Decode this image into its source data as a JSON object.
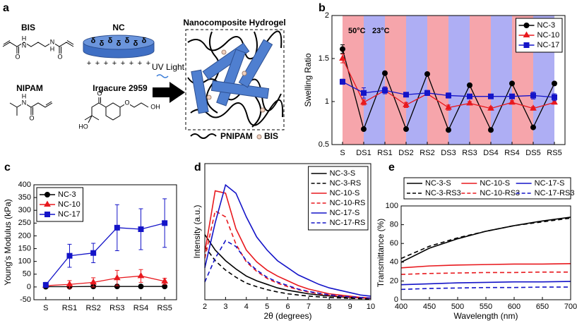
{
  "diagram": {
    "panel_label": "a",
    "labels": {
      "bis": "BIS",
      "nc": "NC",
      "nipam": "NIPAM",
      "irgacure": "Irgacure 2959",
      "uv": "UV Light",
      "hydrogel": "Nanocomposite Hydrogel",
      "pnipam": "PNIPAM",
      "bis_legend": "BIS"
    },
    "atoms": {
      "n": "N",
      "h": "H",
      "o": "O",
      "oh": "OH",
      "ho": "HO"
    },
    "disk_charge": "δ",
    "edge_charge": "+"
  },
  "chart_data": [
    {
      "type": "line",
      "panel_label": "b",
      "ylabel": "Swelling Ratio",
      "categories": [
        "S",
        "DS1",
        "RS1",
        "DS2",
        "RS2",
        "DS3",
        "RS3",
        "DS4",
        "RS4",
        "DS5",
        "RS5"
      ],
      "ylim": [
        0.5,
        2
      ],
      "yticks": [
        0.5,
        1,
        1.5,
        2
      ],
      "band_colors": [
        "#f6a5ab",
        "#aeaef4"
      ],
      "annotations": [
        "50°C",
        "23°C"
      ],
      "legend": "upper right",
      "series": [
        {
          "name": "NC-3",
          "color": "#000000",
          "marker": "circle",
          "values": [
            1.61,
            0.68,
            1.33,
            0.68,
            1.32,
            0.67,
            1.19,
            0.67,
            1.21,
            0.7,
            1.21
          ],
          "errors": [
            0.05,
            0.01,
            0.01,
            0.01,
            0.01,
            0.01,
            0.02,
            0.01,
            0.01,
            0.01,
            0.01
          ]
        },
        {
          "name": "NC-10",
          "color": "#e8191e",
          "marker": "triangle",
          "values": [
            1.5,
            0.99,
            1.13,
            0.96,
            1.09,
            0.93,
            0.98,
            0.92,
            0.99,
            0.92,
            0.99
          ],
          "errors": [
            0.05,
            0.03,
            0.04,
            0.03,
            0.02,
            0.03,
            0.02,
            0.02,
            0.02,
            0.02,
            0.02
          ]
        },
        {
          "name": "NC-17",
          "color": "#1414c8",
          "marker": "square",
          "values": [
            1.23,
            1.1,
            1.13,
            1.08,
            1.1,
            1.07,
            1.06,
            1.06,
            1.06,
            1.07,
            1.05
          ],
          "errors": [
            0.03,
            0.06,
            0.04,
            0.02,
            0.03,
            0.03,
            0.02,
            0.02,
            0.02,
            0.04,
            0.04
          ]
        }
      ]
    },
    {
      "type": "line",
      "panel_label": "c",
      "ylabel": "Young's Modulus (kPa)",
      "categories": [
        "S",
        "RS1",
        "RS2",
        "RS3",
        "RS4",
        "RS5"
      ],
      "ylim": [
        -50,
        400
      ],
      "yticks": [
        -50,
        0,
        50,
        100,
        150,
        200,
        250,
        300,
        350,
        400
      ],
      "legend": "upper left",
      "series": [
        {
          "name": "NC-3",
          "color": "#000000",
          "marker": "circle",
          "values": [
            1,
            1,
            2,
            2,
            2,
            2
          ],
          "errors": [
            2,
            1,
            1,
            1,
            1,
            1
          ]
        },
        {
          "name": "NC-10",
          "color": "#e8191e",
          "marker": "triangle",
          "values": [
            5,
            10,
            18,
            35,
            43,
            22
          ],
          "errors": [
            5,
            15,
            18,
            30,
            25,
            12
          ]
        },
        {
          "name": "NC-17",
          "color": "#1414c8",
          "marker": "square",
          "values": [
            8,
            122,
            133,
            232,
            226,
            250
          ],
          "errors": [
            10,
            45,
            38,
            90,
            80,
            95
          ]
        }
      ]
    },
    {
      "type": "line",
      "panel_label": "d",
      "xlabel": "2θ (degrees)",
      "ylabel": "Intensity (a.u.)",
      "x": [
        2,
        2.5,
        3,
        3.5,
        4,
        4.5,
        5,
        5.5,
        6,
        6.5,
        7,
        7.5,
        8,
        8.5,
        9,
        9.5,
        10
      ],
      "xlim": [
        2,
        10
      ],
      "xticks": [
        2,
        3,
        4,
        5,
        6,
        7,
        8,
        9,
        10
      ],
      "ylim": [
        0,
        1.15
      ],
      "legend": "upper right",
      "series": [
        {
          "name": "NC-3-S",
          "color": "#000000",
          "linestyle": "solid",
          "values": [
            0.55,
            0.42,
            0.33,
            0.26,
            0.2,
            0.16,
            0.13,
            0.1,
            0.08,
            0.065,
            0.05,
            0.04,
            0.032,
            0.025,
            0.02,
            0.016,
            0.012
          ]
        },
        {
          "name": "NC-3-RS",
          "color": "#000000",
          "linestyle": "dashed",
          "values": [
            0.45,
            0.33,
            0.25,
            0.19,
            0.14,
            0.11,
            0.085,
            0.066,
            0.05,
            0.04,
            0.031,
            0.024,
            0.019,
            0.015,
            0.012,
            0.009,
            0.007
          ]
        },
        {
          "name": "NC-10-S",
          "color": "#e8191e",
          "linestyle": "solid",
          "values": [
            0.4,
            0.92,
            0.9,
            0.6,
            0.42,
            0.32,
            0.25,
            0.2,
            0.16,
            0.12,
            0.09,
            0.07,
            0.05,
            0.04,
            0.03,
            0.02,
            0.015
          ]
        },
        {
          "name": "NC-10-RS",
          "color": "#e8191e",
          "linestyle": "dashed",
          "values": [
            0.35,
            0.75,
            0.7,
            0.47,
            0.32,
            0.24,
            0.18,
            0.14,
            0.11,
            0.085,
            0.065,
            0.05,
            0.038,
            0.029,
            0.022,
            0.016,
            0.012
          ]
        },
        {
          "name": "NC-17-S",
          "color": "#1414c8",
          "linestyle": "solid",
          "values": [
            0.27,
            0.65,
            0.97,
            0.9,
            0.7,
            0.53,
            0.42,
            0.33,
            0.27,
            0.21,
            0.17,
            0.13,
            0.1,
            0.08,
            0.06,
            0.04,
            0.03
          ]
        },
        {
          "name": "NC-17-RS",
          "color": "#1414c8",
          "linestyle": "dashed",
          "values": [
            0.15,
            0.35,
            0.5,
            0.45,
            0.33,
            0.25,
            0.19,
            0.15,
            0.12,
            0.09,
            0.07,
            0.055,
            0.042,
            0.032,
            0.025,
            0.019,
            0.014
          ]
        }
      ]
    },
    {
      "type": "line",
      "panel_label": "e",
      "xlabel": "Wavelength (nm)",
      "ylabel": "Transmittance (%)",
      "x": [
        400,
        450,
        500,
        550,
        600,
        650,
        700
      ],
      "xlim": [
        400,
        700
      ],
      "xticks": [
        400,
        450,
        500,
        550,
        600,
        650,
        700
      ],
      "ylim": [
        0,
        100
      ],
      "yticks": [
        0,
        20,
        40,
        60,
        80,
        100
      ],
      "legend": "top",
      "series": [
        {
          "name": "NC-3-S",
          "color": "#000000",
          "linestyle": "solid",
          "values": [
            40,
            55,
            65,
            73,
            79,
            84,
            88
          ]
        },
        {
          "name": "NC-10-S",
          "color": "#e8191e",
          "linestyle": "solid",
          "values": [
            34,
            36,
            37,
            37.5,
            38,
            38,
            38.5
          ]
        },
        {
          "name": "NC-17-S",
          "color": "#1414c8",
          "linestyle": "solid",
          "values": [
            16,
            17,
            18,
            18.5,
            19,
            19,
            19.5
          ]
        },
        {
          "name": "NC-3-RS3",
          "color": "#000000",
          "linestyle": "dashed",
          "values": [
            44,
            57,
            66,
            73,
            79,
            83,
            87
          ]
        },
        {
          "name": "NC-10-RS3",
          "color": "#e8191e",
          "linestyle": "dashed",
          "values": [
            27,
            28,
            28.5,
            29,
            29,
            29.5,
            29.5
          ]
        },
        {
          "name": "NC-17-RS3",
          "color": "#1414c8",
          "linestyle": "dashed",
          "values": [
            11,
            12,
            12.5,
            13,
            13,
            13.5,
            13.5
          ]
        }
      ]
    }
  ]
}
